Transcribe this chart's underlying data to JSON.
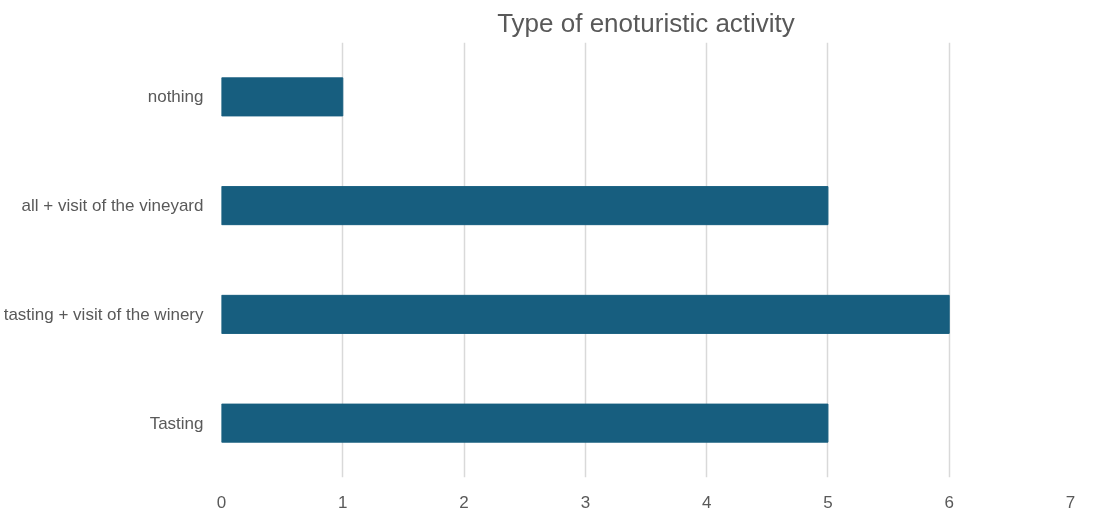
{
  "chart_data": {
    "type": "bar",
    "orientation": "horizontal",
    "title": "Type of enoturistic activity",
    "categories": [
      "nothing",
      "all + visit of the vineyard",
      "tasting + visit of the winery",
      "Tasting"
    ],
    "values": [
      1,
      5,
      6,
      5
    ],
    "color": "#175e7f",
    "xlim": [
      0,
      7
    ],
    "xticks": [
      0,
      1,
      2,
      3,
      4,
      5,
      6,
      7
    ],
    "grid": "x"
  }
}
